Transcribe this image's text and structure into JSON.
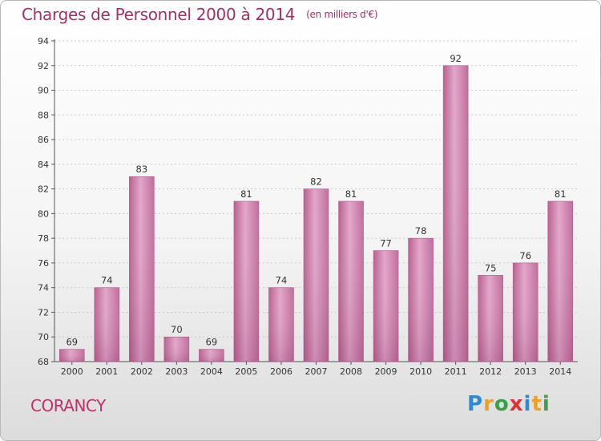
{
  "header": {
    "title": "Charges de Personnel 2000 à 2014",
    "subtitle": "(en milliers d'€)"
  },
  "footer": {
    "commune": "CORANCY",
    "logo_text": "Proxiti",
    "logo_letters": [
      {
        "ch": "P",
        "color": "#2a8ad6"
      },
      {
        "ch": "r",
        "color": "#f0a020"
      },
      {
        "ch": "o",
        "color": "#3aa04a"
      },
      {
        "ch": "x",
        "color": "#e03030"
      },
      {
        "ch": "i",
        "color": "#2a8ad6"
      },
      {
        "ch": "t",
        "color": "#f0a020"
      },
      {
        "ch": "i",
        "color": "#3aa04a"
      }
    ]
  },
  "chart_data": {
    "type": "bar",
    "title": "Charges de Personnel 2000 à 2014",
    "subtitle": "(en milliers d'€)",
    "categories": [
      "2000",
      "2001",
      "2002",
      "2003",
      "2004",
      "2005",
      "2006",
      "2007",
      "2008",
      "2009",
      "2010",
      "2011",
      "2012",
      "2013",
      "2014"
    ],
    "values": [
      69,
      74,
      83,
      70,
      69,
      81,
      74,
      82,
      81,
      77,
      78,
      92,
      75,
      76,
      81
    ],
    "ylim": [
      68,
      94
    ],
    "yticks": [
      68,
      70,
      72,
      74,
      76,
      78,
      80,
      82,
      84,
      86,
      88,
      90,
      92,
      94
    ],
    "grid": true,
    "bar_color": "#d684b4",
    "title_color": "#a0306a"
  }
}
